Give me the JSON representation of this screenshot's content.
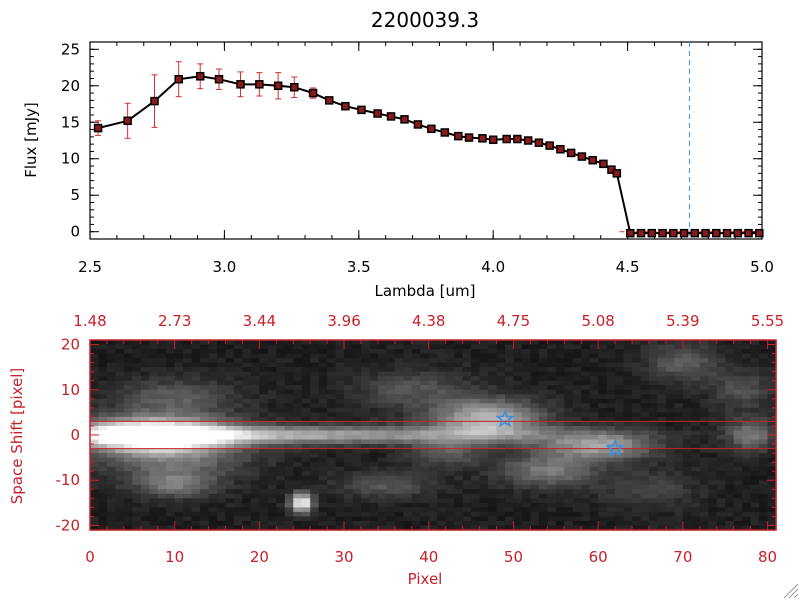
{
  "chart_data": [
    {
      "type": "line",
      "title": "2200039.3",
      "xlabel": "Lambda [um]",
      "ylabel": "Flux [mJy]",
      "xlim": [
        2.5,
        5.0
      ],
      "ylim": [
        -1,
        26
      ],
      "x_ticks": [
        "2.5",
        "3.0",
        "3.5",
        "4.0",
        "4.5",
        "5.0"
      ],
      "y_ticks": [
        "0",
        "5",
        "10",
        "15",
        "20",
        "25"
      ],
      "line_color": "#000000",
      "marker_color": "#8b1a1a",
      "error_color": "#d03030",
      "vline_color": "#3a8fe0",
      "vline_x": 4.73,
      "series": [
        {
          "name": "spectrum",
          "x": [
            2.53,
            2.64,
            2.74,
            2.83,
            2.91,
            2.98,
            3.06,
            3.13,
            3.2,
            3.26,
            3.33,
            3.39,
            3.45,
            3.51,
            3.57,
            3.62,
            3.67,
            3.72,
            3.77,
            3.82,
            3.87,
            3.91,
            3.96,
            4.0,
            4.05,
            4.09,
            4.13,
            4.17,
            4.21,
            4.25,
            4.29,
            4.33,
            4.37,
            4.41,
            4.44,
            4.46,
            4.51,
            4.55,
            4.59,
            4.63,
            4.67,
            4.71,
            4.75,
            4.79,
            4.83,
            4.87,
            4.91,
            4.95,
            4.99
          ],
          "y": [
            14.2,
            15.2,
            17.9,
            20.9,
            21.3,
            20.9,
            20.2,
            20.2,
            20.0,
            19.8,
            19.0,
            18.0,
            17.2,
            16.7,
            16.2,
            15.8,
            15.4,
            14.7,
            14.1,
            13.6,
            13.1,
            12.9,
            12.8,
            12.6,
            12.7,
            12.7,
            12.5,
            12.2,
            11.8,
            11.3,
            10.8,
            10.3,
            9.8,
            9.3,
            8.5,
            8.0,
            -0.2,
            -0.2,
            -0.2,
            -0.2,
            -0.2,
            -0.2,
            -0.2,
            -0.2,
            -0.2,
            -0.2,
            -0.2,
            -0.2,
            -0.2
          ],
          "err": [
            1.0,
            2.4,
            3.6,
            2.4,
            1.7,
            1.4,
            1.7,
            1.6,
            1.8,
            1.4,
            0.7,
            0.4,
            0.3,
            0.2,
            0.2,
            0.2,
            0.2,
            0.2,
            0.2,
            0.2,
            0.2,
            0.2,
            0.2,
            0.2,
            0.2,
            0.2,
            0.2,
            0.2,
            0.2,
            0.2,
            0.2,
            0.2,
            0.2,
            0.2,
            0.2,
            0.2,
            0,
            0,
            0,
            0,
            0,
            0,
            0,
            0,
            0,
            0,
            0,
            0,
            0
          ]
        }
      ]
    },
    {
      "type": "heatmap",
      "xlabel": "Pixel",
      "ylabel": "Space Shift [pixel]",
      "xlim": [
        0,
        81
      ],
      "ylim": [
        -21,
        21
      ],
      "x_ticks": [
        "0",
        "10",
        "20",
        "30",
        "40",
        "50",
        "60",
        "70",
        "80"
      ],
      "y_ticks": [
        "-20",
        "-10",
        "0",
        "10",
        "20"
      ],
      "top_x_ticks": [
        "1.48",
        "2.73",
        "3.44",
        "3.96",
        "4.38",
        "4.75",
        "5.08",
        "5.39",
        "5.55"
      ],
      "axis_color": "#c8202a",
      "aperture_color": "#c8202a",
      "aperture_y": [
        3,
        -3
      ],
      "star_color": "#3a8fe0",
      "stars": [
        {
          "x": 49,
          "y": 3.5
        },
        {
          "x": 62,
          "y": -3
        }
      ],
      "blobs": [
        {
          "x": 7,
          "y": 0,
          "sx": 6.5,
          "sy": 2.6,
          "amp": 1.0
        },
        {
          "x": 24,
          "y": 0,
          "sx": 20,
          "sy": 1.4,
          "amp": 0.55
        },
        {
          "x": 10,
          "y": -5,
          "sx": 6,
          "sy": 4,
          "amp": 0.3
        },
        {
          "x": 10,
          "y": 8,
          "sx": 5,
          "sy": 3,
          "amp": 0.25
        },
        {
          "x": 47,
          "y": 3.5,
          "sx": 4.5,
          "sy": 3,
          "amp": 0.6
        },
        {
          "x": 60,
          "y": -2.5,
          "sx": 4.5,
          "sy": 2.2,
          "amp": 0.5
        },
        {
          "x": 54,
          "y": -8,
          "sx": 4,
          "sy": 2.5,
          "amp": 0.35
        },
        {
          "x": 10,
          "y": -11,
          "sx": 3,
          "sy": 2,
          "amp": 0.3
        },
        {
          "x": 25,
          "y": -15,
          "sx": 0.9,
          "sy": 1.5,
          "amp": 0.9
        },
        {
          "x": 35,
          "y": -11,
          "sx": 4,
          "sy": 2,
          "amp": 0.22
        },
        {
          "x": 38,
          "y": 10,
          "sx": 5,
          "sy": 3,
          "amp": 0.2
        },
        {
          "x": 70,
          "y": 16,
          "sx": 3,
          "sy": 3,
          "amp": 0.25
        },
        {
          "x": 77,
          "y": 10,
          "sx": 2.5,
          "sy": 3,
          "amp": 0.2
        },
        {
          "x": 66,
          "y": -12,
          "sx": 4,
          "sy": 3,
          "amp": 0.15
        },
        {
          "x": 42,
          "y": -4,
          "sx": 3,
          "sy": 2,
          "amp": 0.25
        },
        {
          "x": 78,
          "y": 0,
          "sx": 2,
          "sy": 2.5,
          "amp": 0.35
        }
      ]
    }
  ]
}
